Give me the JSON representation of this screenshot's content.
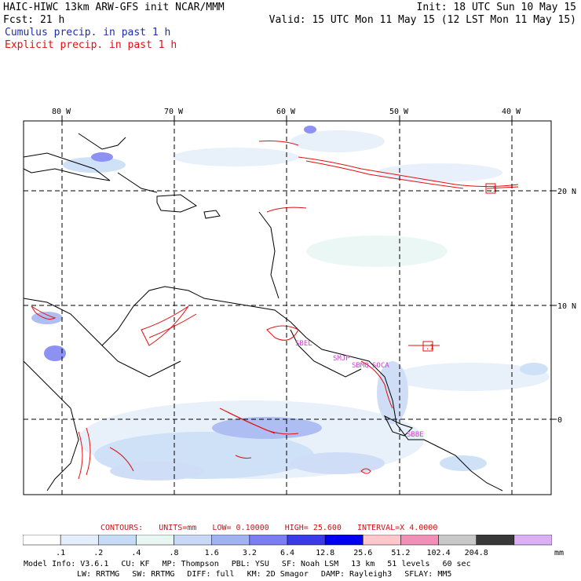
{
  "header": {
    "left_line1": "HAIC-HIWC 13km ARW-GFS init   NCAR/MMM",
    "left_line2": "Fcst:   21 h",
    "right_line1": "Init: 18 UTC Sun 10 May 15",
    "right_line2": "Valid: 15 UTC Mon 11 May 15 (12 LST Mon 11 May 15)"
  },
  "legend": {
    "cumulus": "Cumulus precip. in past 1 h",
    "explicit": "Explicit precip. in past 1 h"
  },
  "colors": {
    "cumulus_text": "#1e2ea8",
    "explicit_text": "#e01010",
    "contour": "#e01010",
    "coast": "#000000",
    "grid": "#000000"
  },
  "map": {
    "lon_labels": [
      "80 W",
      "70 W",
      "60 W",
      "50 W",
      "40 W"
    ],
    "lat_labels": [
      "20 N",
      "10 N",
      "0"
    ],
    "station_labels": [
      "SBEL",
      "SMJP",
      "SBMQ",
      "SOCA",
      "SBBE"
    ],
    "markers": [
      ".1",
      ".1"
    ]
  },
  "contour_info": {
    "contours": "CONTOURS:",
    "units": "UNITS=mm",
    "low": "LOW= 0.10000",
    "high": "HIGH=  25.600",
    "interval": "INTERVAL=X  4.0000"
  },
  "colorbar": {
    "labels": [
      ".1",
      ".2",
      ".4",
      ".8",
      "1.6",
      "3.2",
      "6.4",
      "12.8",
      "25.6",
      "51.2",
      "102.4",
      "204.8"
    ],
    "colors": [
      "#ffffff",
      "#e4eefa",
      "#c6dcf6",
      "#e8f6f2",
      "#c8d8f6",
      "#a0b2f0",
      "#7a7ef0",
      "#3a3ae8",
      "#0000ee",
      "#ffc6cc",
      "#f090b8",
      "#c8c8c8",
      "#383838",
      "#dcb0f4"
    ],
    "units": "mm"
  },
  "model_info": {
    "line1": [
      "Model Info: V3.6.1",
      "CU: KF",
      "MP: Thompson",
      "PBL: YSU",
      "SF: Noah LSM",
      "13 km",
      "51 levels",
      "60 sec"
    ],
    "line2": [
      "LW: RRTMG",
      "SW: RRTMG",
      "DIFF: full",
      "KM: 2D Smagor",
      "DAMP: Rayleigh3",
      "SFLAY: MM5"
    ]
  }
}
